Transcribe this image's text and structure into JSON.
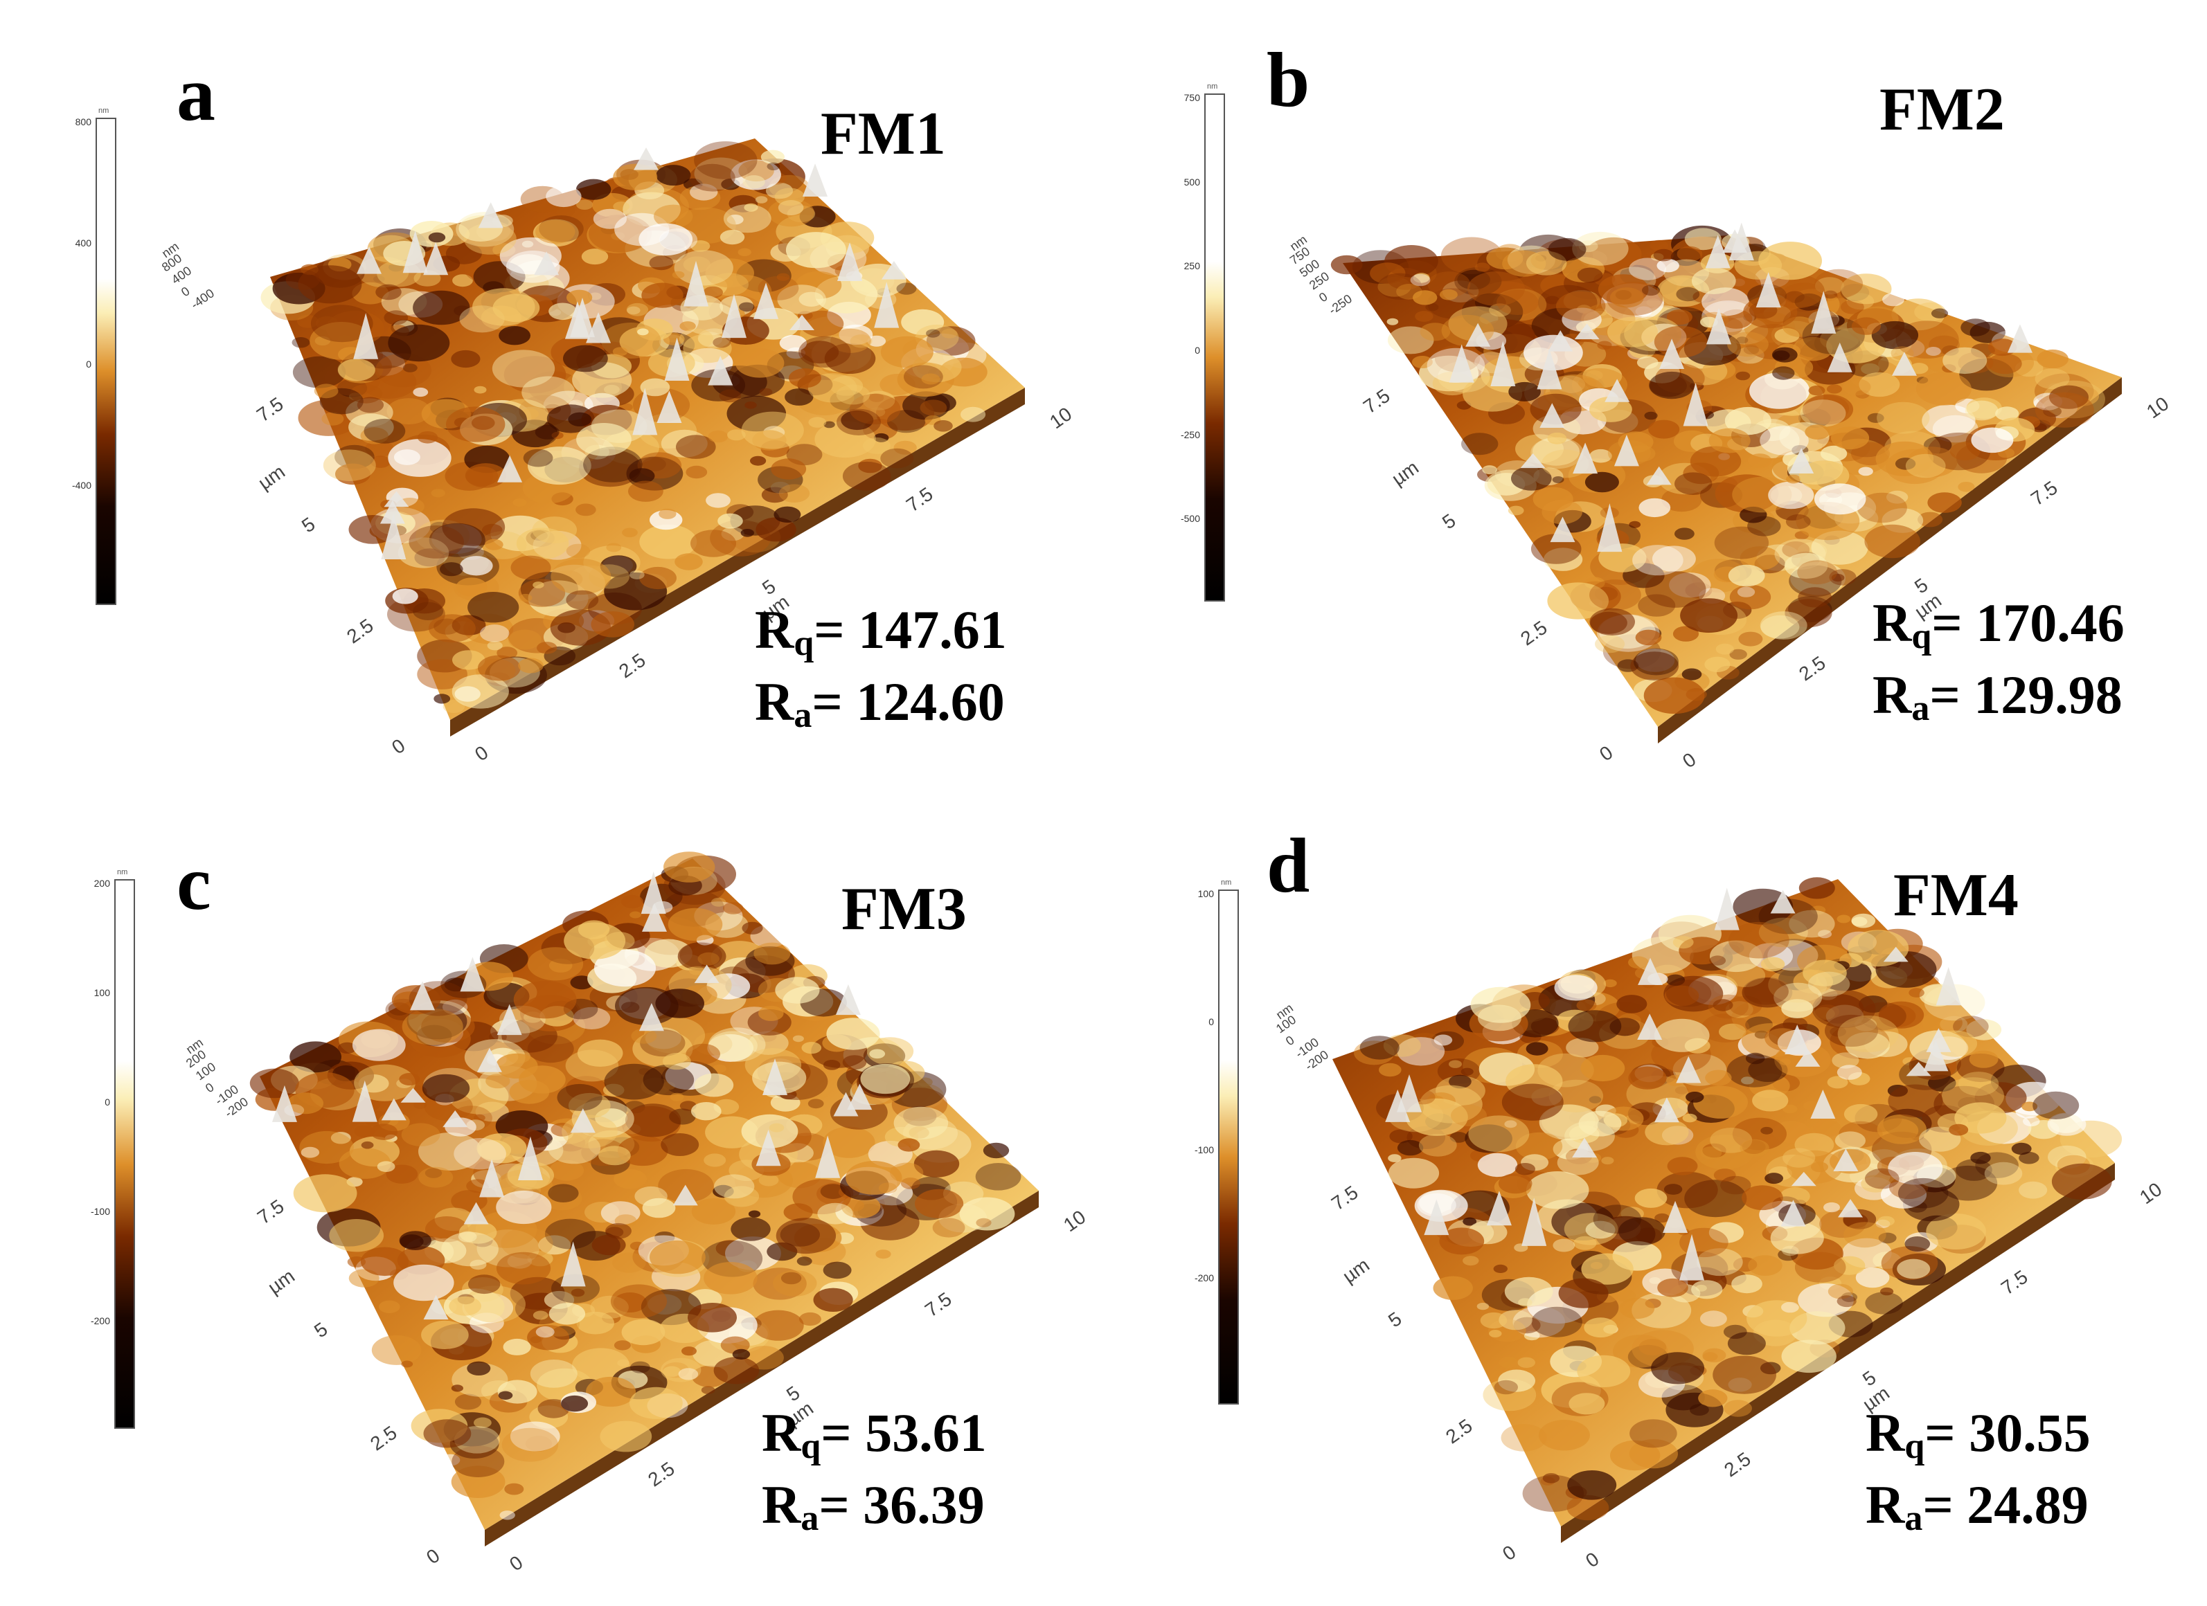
{
  "panels": [
    {
      "label": "a",
      "title": "FM1",
      "rq_prefix": "R",
      "rq_sub": "q",
      "rq_value": "= 147.61",
      "ra_prefix": "R",
      "ra_sub": "a",
      "ra_value": "= 124.60",
      "colorbar": {
        "unit": "nm",
        "ticks": [
          "800",
          "400",
          "0",
          "-400"
        ]
      },
      "z_axis": {
        "unit": "nm",
        "ticks": [
          "800",
          "400",
          "0",
          "-400"
        ]
      },
      "x_axis": {
        "ticks": [
          "0",
          "2.5",
          "5",
          "7.5",
          "10"
        ],
        "unit": "µm"
      },
      "y_axis": {
        "ticks": [
          "0",
          "2.5",
          "5",
          "7.5"
        ],
        "unit": "µm"
      }
    },
    {
      "label": "b",
      "title": "FM2",
      "rq_prefix": "R",
      "rq_sub": "q",
      "rq_value": "= 170.46",
      "ra_prefix": "R",
      "ra_sub": "a",
      "ra_value": "= 129.98",
      "colorbar": {
        "unit": "nm",
        "ticks": [
          "750",
          "500",
          "250",
          "0",
          "-250",
          "-500"
        ]
      },
      "z_axis": {
        "unit": "nm",
        "ticks": [
          "750",
          "500",
          "250",
          "0",
          "-250"
        ]
      },
      "x_axis": {
        "ticks": [
          "0",
          "2.5",
          "5",
          "7.5",
          "10"
        ],
        "unit": "µm"
      },
      "y_axis": {
        "ticks": [
          "0",
          "2.5",
          "5",
          "7.5"
        ],
        "unit": "µm"
      }
    },
    {
      "label": "c",
      "title": "FM3",
      "rq_prefix": "R",
      "rq_sub": "q",
      "rq_value": "= 53.61",
      "ra_prefix": "R",
      "ra_sub": "a",
      "ra_value": "= 36.39",
      "colorbar": {
        "unit": "nm",
        "ticks": [
          "200",
          "100",
          "0",
          "-100",
          "-200"
        ]
      },
      "z_axis": {
        "unit": "nm",
        "ticks": [
          "200",
          "100",
          "0",
          "-100",
          "-200"
        ]
      },
      "x_axis": {
        "ticks": [
          "0",
          "2.5",
          "5",
          "7.5",
          "10"
        ],
        "unit": "µm"
      },
      "y_axis": {
        "ticks": [
          "0",
          "2.5",
          "5",
          "7.5"
        ],
        "unit": "µm"
      }
    },
    {
      "label": "d",
      "title": "FM4",
      "rq_prefix": "R",
      "rq_sub": "q",
      "rq_value": "= 30.55",
      "ra_prefix": "R",
      "ra_sub": "a",
      "ra_value": "= 24.89",
      "colorbar": {
        "unit": "nm",
        "ticks": [
          "100",
          "0",
          "-100",
          "-200"
        ]
      },
      "z_axis": {
        "unit": "nm",
        "ticks": [
          "100",
          "0",
          "-100",
          "-200"
        ]
      },
      "x_axis": {
        "ticks": [
          "0",
          "2.5",
          "5",
          "7.5",
          "10"
        ],
        "unit": "µm"
      },
      "y_axis": {
        "ticks": [
          "0",
          "2.5",
          "5",
          "7.5"
        ],
        "unit": "µm"
      }
    }
  ],
  "colormap": [
    "#000000",
    "#3a0d00",
    "#7a2a00",
    "#b5560a",
    "#dd8f2a",
    "#f3c86a",
    "#fbeeb6",
    "#ffffff"
  ]
}
